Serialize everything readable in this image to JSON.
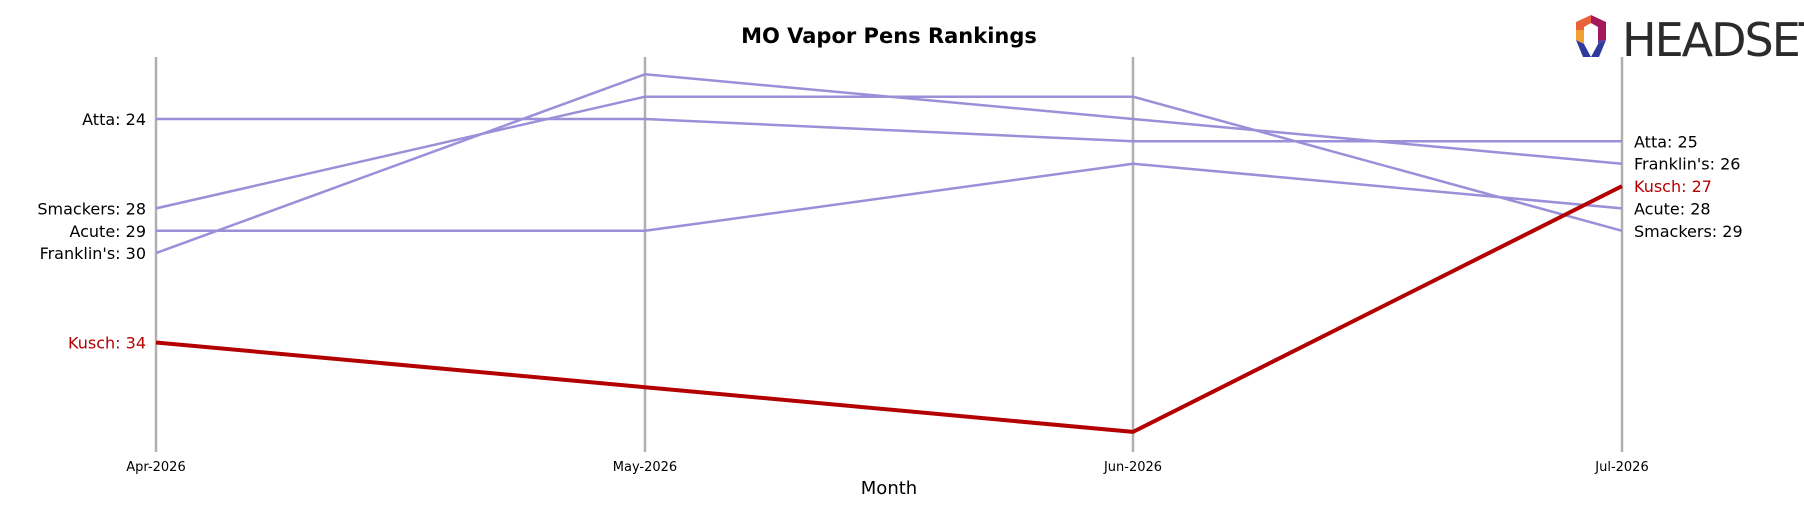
{
  "logo": {
    "text": "HEADSET"
  },
  "chart_data": {
    "type": "line",
    "title": "MO Vapor Pens Rankings",
    "xlabel": "Month",
    "ylabel": "",
    "categories": [
      "Apr-2026",
      "May-2026",
      "Jun-2026",
      "Jul-2026"
    ],
    "y_inverted": true,
    "grid": false,
    "series": [
      {
        "name": "Atta",
        "values": [
          24,
          24,
          25,
          25
        ],
        "color": "#9b8fd8",
        "highlight": false,
        "start_label": "Atta: 24",
        "end_label": "Atta: 25"
      },
      {
        "name": "Smackers",
        "values": [
          28,
          23,
          23,
          29
        ],
        "color": "#9b8fd8",
        "highlight": false,
        "start_label": "Smackers: 28",
        "end_label": "Smackers: 29"
      },
      {
        "name": "Acute",
        "values": [
          29,
          29,
          26,
          28
        ],
        "color": "#9b8fd8",
        "highlight": false,
        "start_label": "Acute: 29",
        "end_label": "Acute: 28"
      },
      {
        "name": "Franklin's",
        "values": [
          30,
          22,
          24,
          26
        ],
        "color": "#9b8fd8",
        "highlight": false,
        "start_label": "Franklin's: 30",
        "end_label": "Franklin's: 26"
      },
      {
        "name": "Kusch",
        "values": [
          34,
          36,
          38,
          27
        ],
        "color": "#b30000",
        "highlight": true,
        "start_label": "Kusch: 34",
        "end_label": "Kusch: 27"
      }
    ],
    "ylim": [
      39,
      21
    ]
  }
}
